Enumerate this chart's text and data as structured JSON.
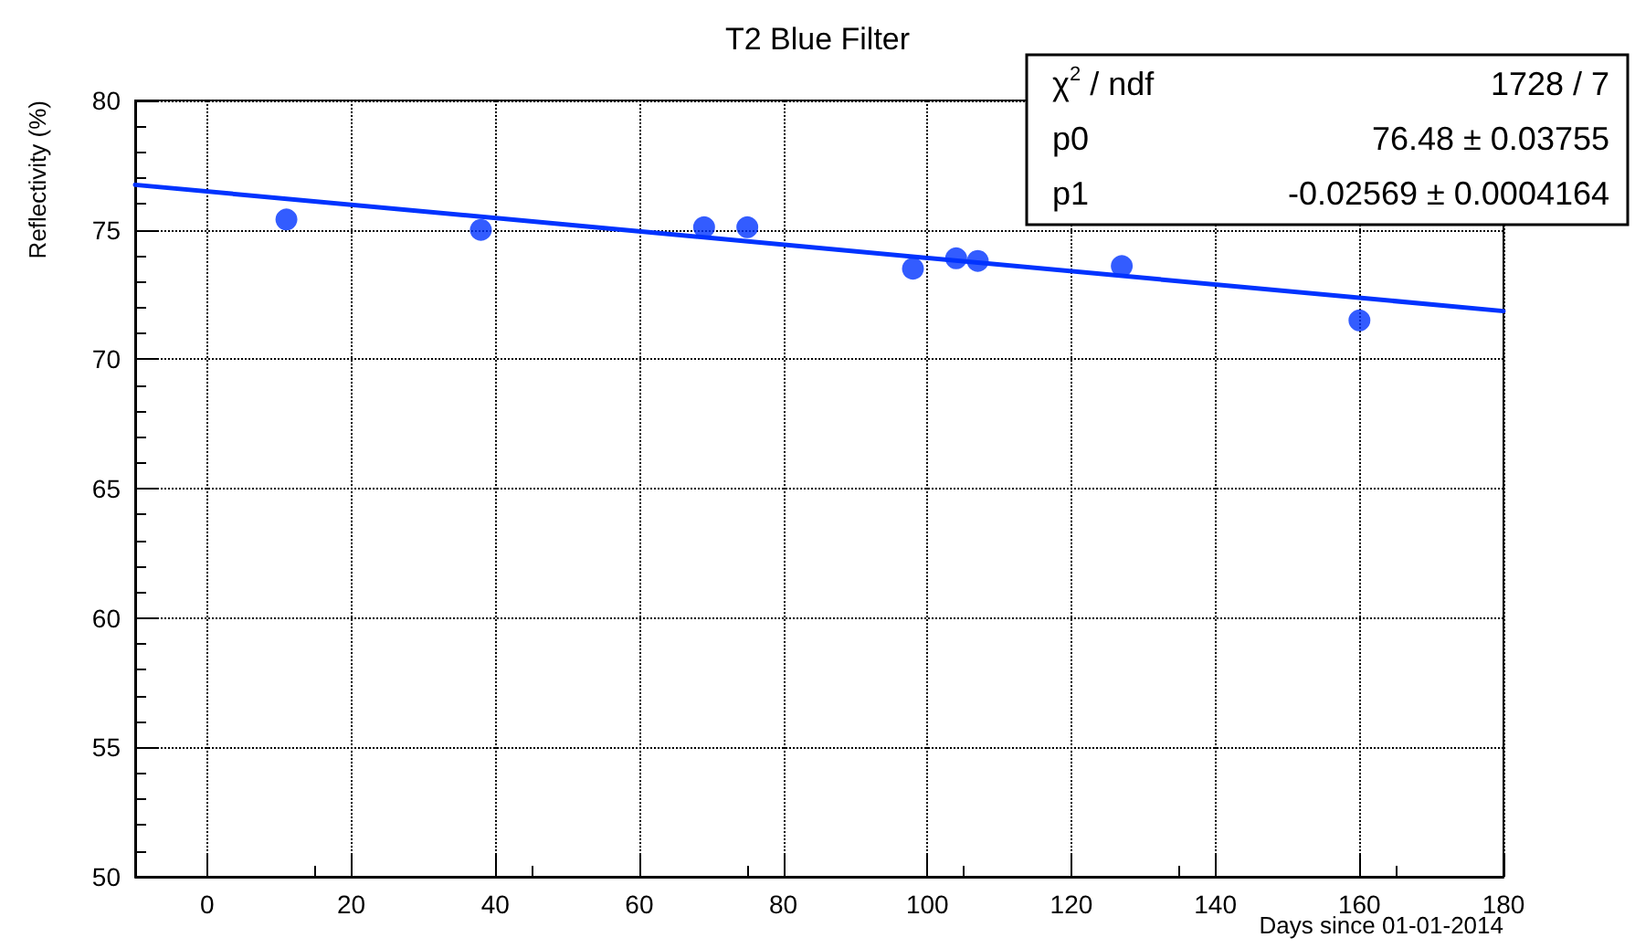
{
  "chart_data": {
    "type": "scatter",
    "title": "T2 Blue Filter",
    "xlabel": "Days since 01-01-2014",
    "ylabel": "Reflectivity (%)",
    "x": [
      11,
      38,
      69,
      75,
      98,
      104,
      107,
      127,
      160
    ],
    "series": [
      {
        "color": "#0033ff",
        "values": [
          75.4,
          75.0,
          75.1,
          75.1,
          73.5,
          73.9,
          73.8,
          73.6,
          71.5
        ]
      },
      {
        "type": "line",
        "marker": "none",
        "color": "#0033ff",
        "x": [
          -10,
          180
        ],
        "values": [
          76.74,
          71.86
        ]
      }
    ],
    "xlim": [
      -10,
      180
    ],
    "xticks": [
      0,
      20,
      40,
      60,
      80,
      100,
      120,
      140,
      160,
      180
    ],
    "ylim": [
      50,
      80
    ],
    "yticks": [
      50,
      55,
      60,
      65,
      70,
      75,
      80
    ],
    "grid": true,
    "marker": "circle",
    "line_style": "solid",
    "annotations": [
      "χ$^{2}$ / ndf   1728 / 7",
      "p0   76.48 ± 0.03755",
      "p1   -0.02569 ± 0.0004164"
    ]
  }
}
